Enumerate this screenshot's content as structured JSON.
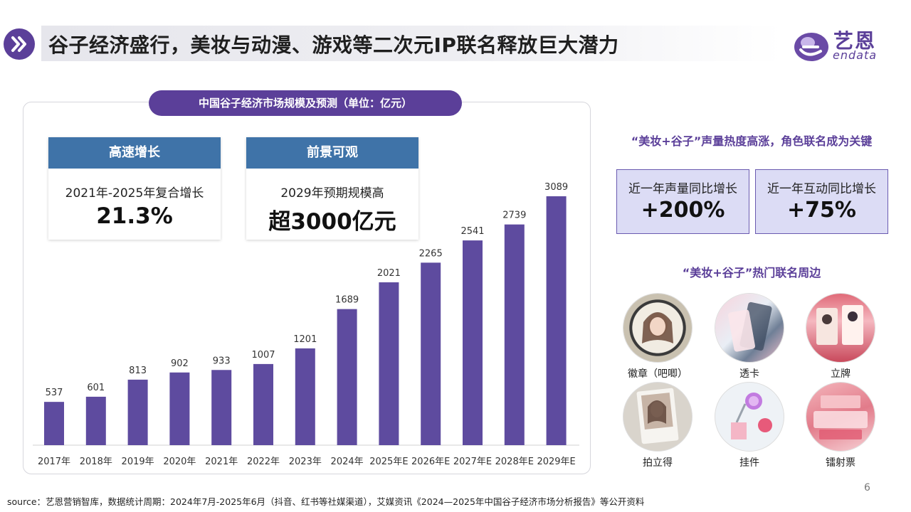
{
  "header": {
    "title": "谷子经济盛行，美妆与动漫、游戏等二次元IP联名释放巨大潜力",
    "logo_cn": "艺恩",
    "logo_en": "endata"
  },
  "chart_panel": {
    "title": "中国谷子经济市场规模及预测（单位：亿元）",
    "kpis": [
      {
        "head": "高速增长",
        "sub": "2021年-2025年复合增长",
        "value": "21.3%"
      },
      {
        "head": "前景可观",
        "sub": "2029年预期规模高",
        "value": "超3000亿元"
      }
    ]
  },
  "chart_data": {
    "type": "bar",
    "categories": [
      "2017年",
      "2018年",
      "2019年",
      "2020年",
      "2021年",
      "2022年",
      "2023年",
      "2024年",
      "2025年E",
      "2026年E",
      "2027年E",
      "2028年E",
      "2029年E"
    ],
    "values": [
      537,
      601,
      813,
      902,
      933,
      1007,
      1201,
      1689,
      2021,
      2265,
      2541,
      2739,
      3089
    ],
    "bar_color": "#5e4b9f",
    "data_labels": true,
    "grid": false
  },
  "right": {
    "heading": "“美妆+谷子”声量热度高涨，角色联名成为关键",
    "stats": [
      {
        "label": "近一年声量同比增长",
        "value": "+200%"
      },
      {
        "label": "近一年互动同比增长",
        "value": "+75%"
      }
    ],
    "merch_heading": "“美妆+谷子”热门联名周边",
    "merch": [
      {
        "label": "徽章（吧唧）",
        "icon": "badge-photo"
      },
      {
        "label": "透卡",
        "icon": "clear-card-photo"
      },
      {
        "label": "立牌",
        "icon": "standee-photo"
      },
      {
        "label": "拍立得",
        "icon": "polaroid-photo"
      },
      {
        "label": "挂件",
        "icon": "keychain-photo"
      },
      {
        "label": "镭射票",
        "icon": "laser-ticket-photo"
      }
    ]
  },
  "footer": {
    "source": "source：艺恩营销智库，数据统计周期：2024年7月-2025年6月（抖音、红书等社媒渠道），艾媒资讯《2024—2025年中国谷子经济市场分析报告》等公开资料",
    "page": "6"
  },
  "colors": {
    "accent": "#5b3f99",
    "kpi_head": "#3f73a8",
    "stat_bg": "#dcdcf5"
  }
}
